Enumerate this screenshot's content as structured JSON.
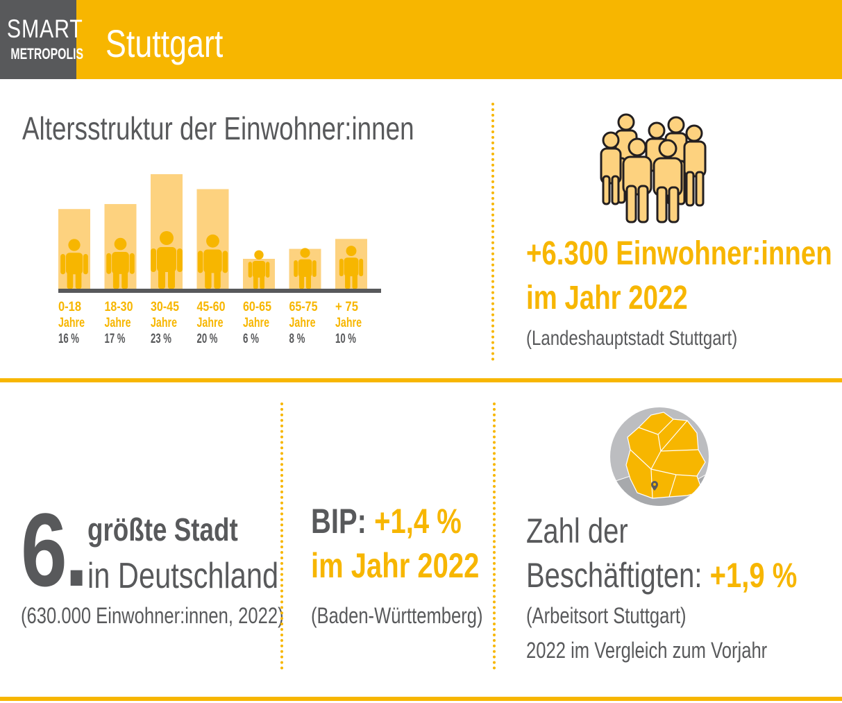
{
  "header": {
    "logo_top": "SMART",
    "logo_bottom": "METROPOLIS",
    "city": "Stuttgart"
  },
  "colors": {
    "accent": "#f7b600",
    "bar_fill": "#fdd27f",
    "dark": "#58595b"
  },
  "chart_data": {
    "type": "bar",
    "title": "Altersstruktur der Einwohner:innen",
    "categories": [
      "0-18",
      "18-30",
      "30-45",
      "45-60",
      "60-65",
      "65-75",
      "+ 75"
    ],
    "category_unit": "Jahre",
    "values": [
      16,
      17,
      23,
      20,
      6,
      8,
      10
    ],
    "value_labels": [
      "16 %",
      "17 %",
      "23 %",
      "20 %",
      "6 %",
      "8 %",
      "10 %"
    ],
    "icon": "person-icon"
  },
  "growth": {
    "icon": "group-of-people-icon",
    "line1": "+6.300 Einwohner:innen",
    "line2": "im Jahr 2022",
    "source": "(Landeshauptstadt Stuttgart)"
  },
  "rank": {
    "number": "6.",
    "line1": "größte Stadt",
    "line2": "in Deutschland",
    "note": "(630.000 Einwohner:innen, 2022)"
  },
  "gdp": {
    "label": "BIP:",
    "value": "+1,4 %",
    "year": "im Jahr 2022",
    "source": "(Baden-Württemberg)"
  },
  "employment": {
    "icon": "germany-map-globe-icon",
    "line1": "Zahl der",
    "line2": "Beschäftigten:",
    "value": "+1,9 %",
    "source": "(Arbeitsort Stuttgart)",
    "note": "2022 im Vergleich zum Vorjahr"
  }
}
